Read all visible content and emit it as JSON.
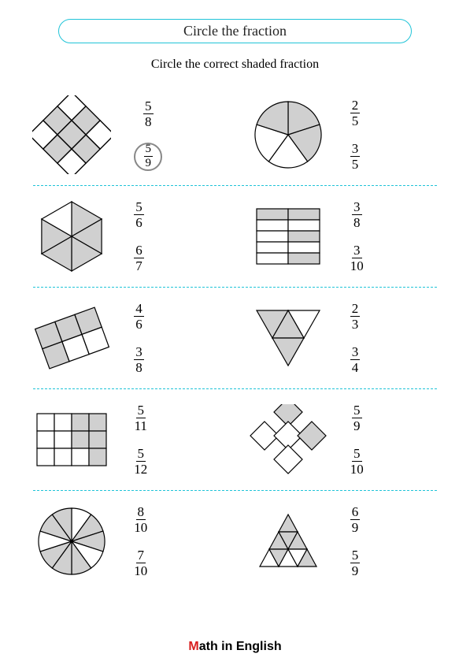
{
  "title": "Circle the fraction",
  "subtitle": "Circle the correct shaded fraction",
  "footer_m": "M",
  "footer_rest": "ath in English",
  "colors": {
    "shade": "#d0d0d0",
    "stroke": "#000000",
    "accent": "#20c4d8"
  },
  "problems": [
    {
      "left": {
        "shape": "diamond-grid-3x3",
        "shaded_cells": [
          1,
          3,
          4,
          5,
          7
        ],
        "options": [
          {
            "num": "5",
            "den": "8",
            "circled": false
          },
          {
            "num": "5",
            "den": "9",
            "circled": true
          }
        ]
      },
      "right": {
        "shape": "circle-5",
        "shaded_slices": [
          0,
          1,
          4
        ],
        "options": [
          {
            "num": "2",
            "den": "5",
            "circled": false
          },
          {
            "num": "3",
            "den": "5",
            "circled": false
          }
        ]
      }
    },
    {
      "left": {
        "shape": "hexagon-6",
        "shaded_slices": [
          0,
          1,
          2,
          3,
          4
        ],
        "options": [
          {
            "num": "5",
            "den": "6",
            "circled": false
          },
          {
            "num": "6",
            "den": "7",
            "circled": false
          }
        ]
      },
      "right": {
        "shape": "rect-grid-5x2",
        "shaded_cells": [
          0,
          1,
          5,
          9
        ],
        "options": [
          {
            "num": "3",
            "den": "8",
            "circled": false
          },
          {
            "num": "3",
            "den": "10",
            "circled": false
          }
        ]
      }
    },
    {
      "left": {
        "shape": "tilted-rect-3x2",
        "shaded_cells": [
          0,
          1,
          2,
          3
        ],
        "options": [
          {
            "num": "4",
            "den": "6",
            "circled": false
          },
          {
            "num": "3",
            "den": "8",
            "circled": false
          }
        ]
      },
      "right": {
        "shape": "triangle-down-4",
        "shaded_tris": [
          0,
          2,
          3
        ],
        "options": [
          {
            "num": "2",
            "den": "3",
            "circled": false
          },
          {
            "num": "3",
            "den": "4",
            "circled": false
          }
        ]
      }
    },
    {
      "left": {
        "shape": "square-grid-4x3",
        "shaded_cells": [
          2,
          3,
          6,
          7,
          11
        ],
        "options": [
          {
            "num": "5",
            "den": "11",
            "circled": false
          },
          {
            "num": "5",
            "den": "12",
            "circled": false
          }
        ]
      },
      "right": {
        "shape": "diamond-cross-5",
        "shaded_cells": [
          0,
          3
        ],
        "options": [
          {
            "num": "5",
            "den": "9",
            "circled": false
          },
          {
            "num": "5",
            "den": "10",
            "circled": false
          }
        ]
      }
    },
    {
      "left": {
        "shape": "circle-10",
        "shaded_slices": [
          1,
          2,
          4,
          5,
          6,
          8,
          9
        ],
        "options": [
          {
            "num": "8",
            "den": "10",
            "circled": false
          },
          {
            "num": "7",
            "den": "10",
            "circled": false
          }
        ]
      },
      "right": {
        "shape": "triangle-up-9",
        "shaded_tris": [
          0,
          1,
          2,
          3,
          5,
          8
        ],
        "options": [
          {
            "num": "6",
            "den": "9",
            "circled": false
          },
          {
            "num": "5",
            "den": "9",
            "circled": false
          }
        ]
      }
    }
  ]
}
